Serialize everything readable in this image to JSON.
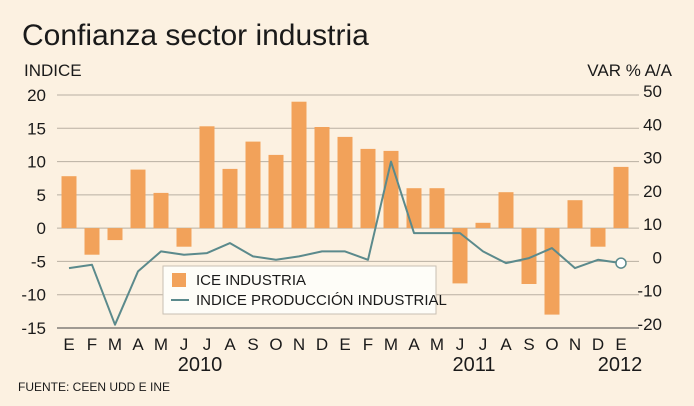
{
  "chart_data": {
    "type": "bar+line",
    "title": "Confianza sector industria",
    "left_axis_label": "INDICE",
    "right_axis_label": "VAR % A/A",
    "left_ylim": [
      -15,
      20
    ],
    "right_ylim": [
      -20,
      50
    ],
    "left_ticks": [
      "20",
      "15",
      "10",
      "5",
      "0",
      "-5",
      "-10",
      "-15"
    ],
    "right_ticks": [
      "50",
      "40",
      "30",
      "20",
      "10",
      "0",
      "-10",
      "-20"
    ],
    "categories": [
      "E",
      "F",
      "M",
      "A",
      "M",
      "J",
      "J",
      "A",
      "S",
      "O",
      "N",
      "D",
      "E",
      "F",
      "M",
      "A",
      "M",
      "J",
      "J",
      "A",
      "S",
      "O",
      "N",
      "D",
      "E"
    ],
    "year_labels": [
      "2010",
      "2011",
      "2012"
    ],
    "series": [
      {
        "name": "ICE INDUSTRIA",
        "type": "bar",
        "axis": "left",
        "color": "#f2a25a",
        "values": [
          7.8,
          -4.0,
          -1.8,
          8.8,
          5.3,
          -2.8,
          15.3,
          8.9,
          13.0,
          11.0,
          19.0,
          15.2,
          13.7,
          11.9,
          11.6,
          6.0,
          6.0,
          -8.3,
          0.8,
          5.4,
          -8.4,
          -13.0,
          4.2,
          -2.8,
          9.2
        ]
      },
      {
        "name": "INDICE PRODUCCIÓN INDUSTRIAL",
        "type": "line",
        "axis": "right",
        "color": "#5b8a8c",
        "values": [
          -2.0,
          -1.0,
          -19.0,
          -3.0,
          3.0,
          2.0,
          2.5,
          5.5,
          1.5,
          0.5,
          1.5,
          3.0,
          3.0,
          0.5,
          30.0,
          8.5,
          8.5,
          8.5,
          3.0,
          -0.5,
          1.0,
          4.0,
          -2.0,
          0.5,
          -0.5
        ]
      }
    ],
    "source": "FUENTE: CEEN UDD E INE"
  }
}
